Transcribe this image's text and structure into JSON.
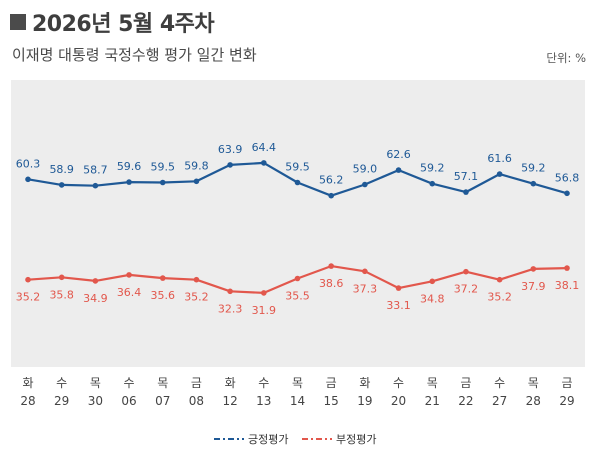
{
  "header": {
    "title": "2026년 5월 4주차",
    "subtitle": "이재명 대통령 국정수행 평가 일간 변화",
    "unit": "단위: %"
  },
  "colors": {
    "positive": "#1f5996",
    "negative": "#e2574c",
    "plot_bg": "#ededed"
  },
  "chart_data": {
    "type": "line",
    "title": "이재명 대통령 국정수행 평가 일간 변화",
    "xlabel": "",
    "ylabel": "",
    "ylim": [
      20,
      80
    ],
    "grid": false,
    "legend_position": "bottom-center",
    "categories": [
      {
        "day": "화",
        "date": "28"
      },
      {
        "day": "수",
        "date": "29"
      },
      {
        "day": "목",
        "date": "30"
      },
      {
        "day": "수",
        "date": "06"
      },
      {
        "day": "목",
        "date": "07"
      },
      {
        "day": "금",
        "date": "08"
      },
      {
        "day": "화",
        "date": "12"
      },
      {
        "day": "수",
        "date": "13"
      },
      {
        "day": "목",
        "date": "14"
      },
      {
        "day": "금",
        "date": "15"
      },
      {
        "day": "화",
        "date": "19"
      },
      {
        "day": "수",
        "date": "20"
      },
      {
        "day": "목",
        "date": "21"
      },
      {
        "day": "금",
        "date": "22"
      },
      {
        "day": "수",
        "date": "27"
      },
      {
        "day": "목",
        "date": "28"
      },
      {
        "day": "금",
        "date": "29"
      }
    ],
    "series": [
      {
        "name": "긍정평가",
        "values": [
          60.3,
          58.9,
          58.7,
          59.6,
          59.5,
          59.8,
          63.9,
          64.4,
          59.5,
          56.2,
          59.0,
          62.6,
          59.2,
          57.1,
          61.6,
          59.2,
          56.8
        ]
      },
      {
        "name": "부정평가",
        "values": [
          35.2,
          35.8,
          34.9,
          36.4,
          35.6,
          35.2,
          32.3,
          31.9,
          35.5,
          38.6,
          37.3,
          33.1,
          34.8,
          37.2,
          35.2,
          37.9,
          38.1
        ]
      }
    ]
  }
}
